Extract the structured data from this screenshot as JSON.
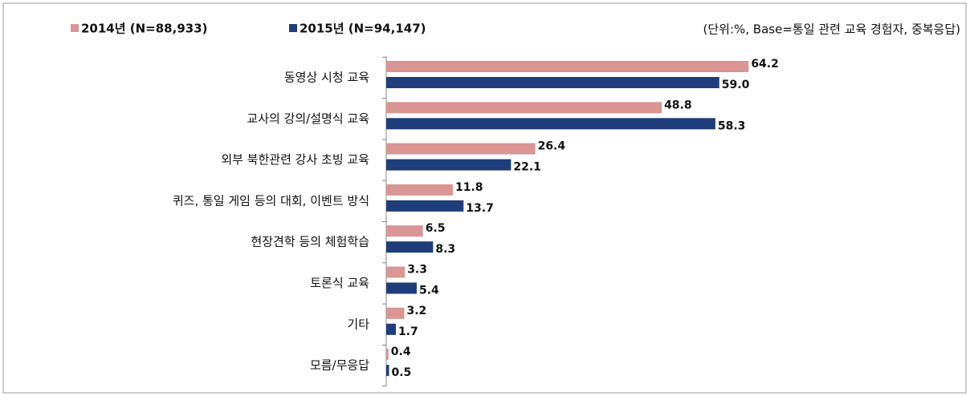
{
  "chart_data": {
    "type": "bar",
    "orientation": "horizontal",
    "annotation": "(단위:%, Base=통일 관련 교육 경험자, 중복응답)",
    "categories": [
      "동영상 시청 교육",
      "교사의 강의/설명식 교육",
      "외부 북한관련 강사 초빙 교육",
      "퀴즈, 통일 게임 등의 대회, 이벤트 방식",
      "현장견학 등의 체험학습",
      "토론식 교육",
      "기타",
      "모름/무응답"
    ],
    "series": [
      {
        "name": "2014년 (N=88,933)",
        "color": "#d99694",
        "values": [
          64.2,
          48.8,
          26.4,
          11.8,
          6.5,
          3.3,
          3.2,
          0.4
        ],
        "value_labels": [
          "64.2",
          "48.8",
          "26.4",
          "11.8",
          "6.5",
          "3.3",
          "3.2",
          "0.4"
        ]
      },
      {
        "name": "2015년 (N=94,147)",
        "color": "#1f3d7a",
        "values": [
          59.0,
          58.3,
          22.1,
          13.7,
          8.3,
          5.4,
          1.7,
          0.5
        ],
        "value_labels": [
          "59.0",
          "58.3",
          "22.1",
          "13.7",
          "8.3",
          "5.4",
          "1.7",
          "0.5"
        ]
      }
    ],
    "xlim": [
      0,
      100
    ],
    "legend": "top-left"
  }
}
